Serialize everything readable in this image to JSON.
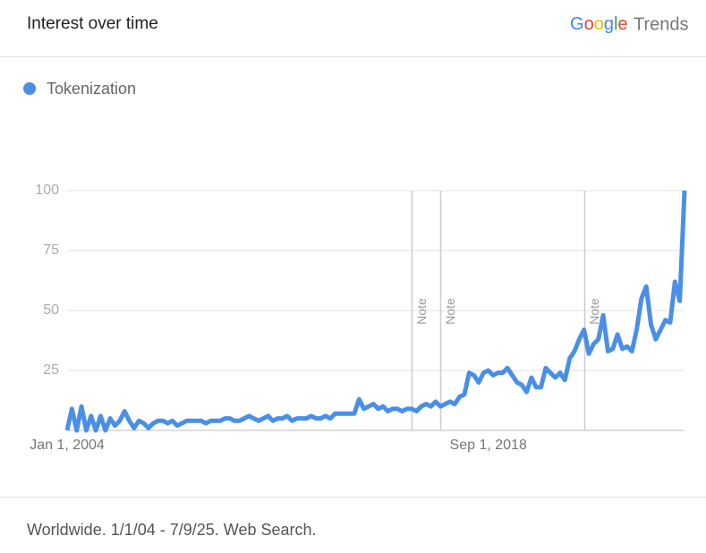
{
  "header": {
    "title": "Interest over time",
    "logo": {
      "google": "Google",
      "trends": "Trends"
    }
  },
  "chart_data": {
    "type": "line",
    "x": [
      "2004-01",
      "2004-03",
      "2004-05",
      "2004-07",
      "2004-09",
      "2004-11",
      "2005-01",
      "2005-03",
      "2005-05",
      "2005-07",
      "2005-09",
      "2005-11",
      "2006-01",
      "2006-03",
      "2006-05",
      "2006-07",
      "2006-09",
      "2006-11",
      "2007-01",
      "2007-03",
      "2007-05",
      "2007-07",
      "2007-09",
      "2007-11",
      "2008-01",
      "2008-03",
      "2008-05",
      "2008-07",
      "2008-09",
      "2008-11",
      "2009-01",
      "2009-03",
      "2009-05",
      "2009-07",
      "2009-09",
      "2009-11",
      "2010-01",
      "2010-03",
      "2010-05",
      "2010-07",
      "2010-09",
      "2010-11",
      "2011-01",
      "2011-03",
      "2011-05",
      "2011-07",
      "2011-09",
      "2011-11",
      "2012-01",
      "2012-03",
      "2012-05",
      "2012-07",
      "2012-09",
      "2012-11",
      "2013-01",
      "2013-03",
      "2013-05",
      "2013-07",
      "2013-09",
      "2013-11",
      "2014-01",
      "2014-03",
      "2014-05",
      "2014-07",
      "2014-09",
      "2014-11",
      "2015-01",
      "2015-03",
      "2015-05",
      "2015-07",
      "2015-09",
      "2015-11",
      "2016-01",
      "2016-03",
      "2016-05",
      "2016-07",
      "2016-09",
      "2016-11",
      "2017-01",
      "2017-03",
      "2017-05",
      "2017-07",
      "2017-09",
      "2017-11",
      "2018-01",
      "2018-03",
      "2018-05",
      "2018-07",
      "2018-09",
      "2018-11",
      "2019-01",
      "2019-03",
      "2019-05",
      "2019-07",
      "2019-09",
      "2019-11",
      "2020-01",
      "2020-03",
      "2020-05",
      "2020-07",
      "2020-09",
      "2020-11",
      "2021-01",
      "2021-03",
      "2021-05",
      "2021-07",
      "2021-09",
      "2021-11",
      "2022-01",
      "2022-03",
      "2022-05",
      "2022-07",
      "2022-09",
      "2022-11",
      "2023-01",
      "2023-03",
      "2023-05",
      "2023-07",
      "2023-09",
      "2023-11",
      "2024-01",
      "2024-03",
      "2024-05",
      "2024-07",
      "2024-09",
      "2024-11",
      "2025-01",
      "2025-03",
      "2025-05",
      "2025-07"
    ],
    "series": [
      {
        "name": "Tokenization",
        "color": "#4a8fe7",
        "values": [
          0,
          9,
          0,
          10,
          0,
          6,
          0,
          6,
          0,
          5,
          2,
          4,
          8,
          4,
          1,
          4,
          3,
          1,
          3,
          4,
          4,
          3,
          4,
          2,
          3,
          4,
          4,
          4,
          4,
          3,
          4,
          4,
          4,
          5,
          5,
          4,
          4,
          5,
          6,
          5,
          4,
          5,
          6,
          4,
          5,
          5,
          6,
          4,
          5,
          5,
          5,
          6,
          5,
          5,
          6,
          5,
          7,
          7,
          7,
          7,
          7,
          13,
          9,
          10,
          11,
          9,
          10,
          8,
          9,
          9,
          8,
          9,
          9,
          8,
          10,
          11,
          10,
          12,
          10,
          11,
          12,
          11,
          14,
          15,
          24,
          23,
          20,
          24,
          25,
          23,
          24,
          24,
          26,
          23,
          20,
          19,
          16,
          22,
          18,
          18,
          26,
          24,
          22,
          24,
          21,
          30,
          33,
          38,
          42,
          32,
          36,
          38,
          48,
          33,
          34,
          40,
          34,
          35,
          33,
          42,
          55,
          60,
          44,
          38,
          42,
          46,
          45,
          62,
          54,
          100
        ]
      }
    ],
    "xlim": [
      "2004-01",
      "2025-07"
    ],
    "xticks": [
      {
        "value": "2004-01",
        "label": "Jan 1, 2004"
      },
      {
        "value": "2018-09",
        "label": "Sep 1, 2018"
      }
    ],
    "ylim": [
      0,
      100
    ],
    "yticks": [
      25,
      50,
      75,
      100
    ],
    "grid": true,
    "annotations": [
      {
        "x": "2016-01",
        "text": "Note"
      },
      {
        "x": "2017-01",
        "text": "Note"
      },
      {
        "x": "2022-01",
        "text": "Note"
      }
    ]
  },
  "footer": {
    "text": "Worldwide. 1/1/04 - 7/9/25. Web Search."
  }
}
